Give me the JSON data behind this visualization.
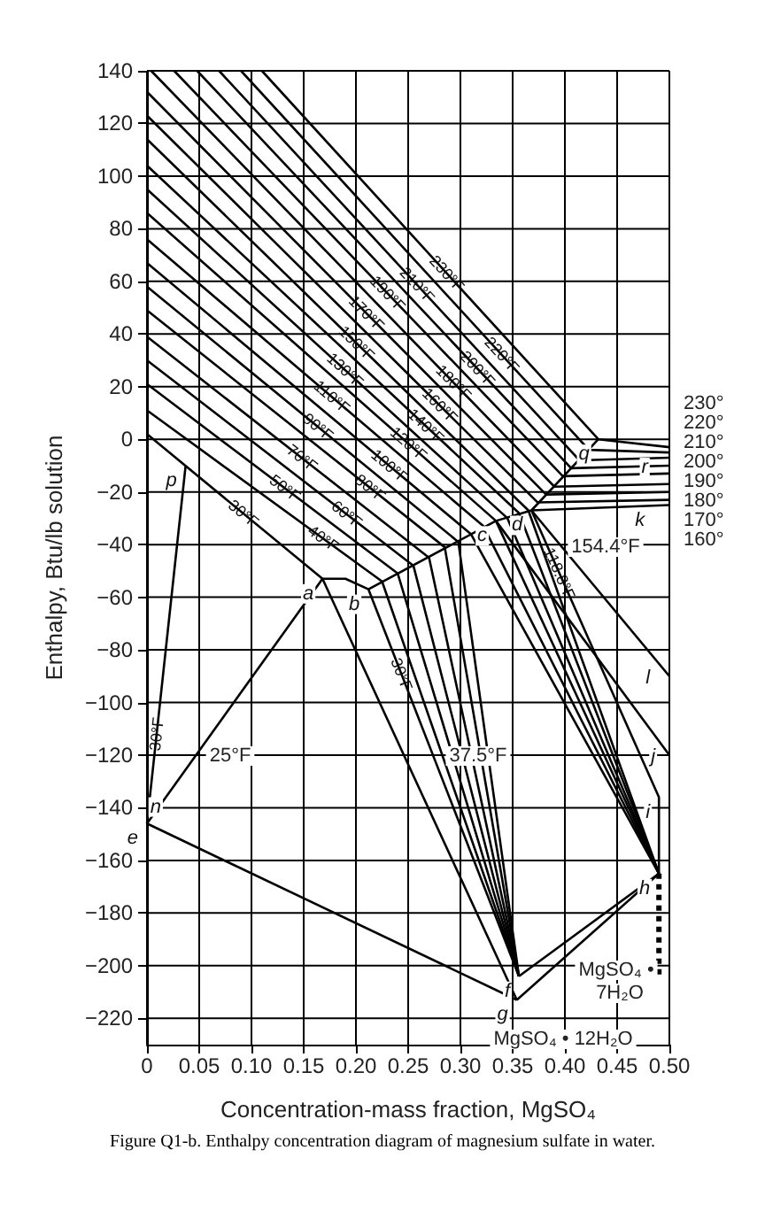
{
  "chart_data": {
    "type": "line",
    "title": "Figure Q1-b. Enthalpy concentration diagram of magnesium sulfate in water.",
    "xlabel": "Concentration-mass fraction, MgSO₄",
    "ylabel": "Enthalpy, Btu/lb solution",
    "xlim": [
      0,
      0.5
    ],
    "ylim": [
      -230,
      140
    ],
    "xticks": [
      0,
      0.05,
      {
        "value": 0.1,
        "label": "0.10"
      },
      0.15,
      {
        "value": 0.2,
        "label": "0.20"
      },
      0.25,
      {
        "value": 0.3,
        "label": "0.30"
      },
      0.35,
      {
        "value": 0.4,
        "label": "0.40"
      },
      0.45,
      {
        "value": 0.5,
        "label": "0.50"
      }
    ],
    "yticks": [
      {
        "value": -220,
        "label": "−220"
      },
      {
        "value": -200,
        "label": "−200"
      },
      {
        "value": -180,
        "label": "−180"
      },
      {
        "value": -160,
        "label": "−160"
      },
      {
        "value": -140,
        "label": "−140"
      },
      {
        "value": -120,
        "label": "−120"
      },
      {
        "value": -100,
        "label": "−100"
      },
      {
        "value": -80,
        "label": "−80"
      },
      {
        "value": -60,
        "label": "−60"
      },
      {
        "value": -40,
        "label": "−40"
      },
      {
        "value": -20,
        "label": "−20"
      },
      0,
      20,
      40,
      60,
      80,
      100,
      120,
      140
    ],
    "grid": true,
    "marker": "none",
    "color": "#000000",
    "series": [
      {
        "name": "30°F",
        "x": [
          0,
          0.168,
          0.354
        ],
        "values": [
          2,
          -53,
          -213
        ]
      },
      {
        "name": "40°F",
        "x": [
          0,
          0.225,
          0.356
        ],
        "values": [
          11,
          -54,
          -204
        ]
      },
      {
        "name": "50°F",
        "x": [
          0,
          0.24,
          0.356
        ],
        "values": [
          21,
          -51,
          -204
        ]
      },
      {
        "name": "60°F",
        "x": [
          0,
          0.255,
          0.356
        ],
        "values": [
          30,
          -48,
          -204
        ]
      },
      {
        "name": "70°F",
        "x": [
          0,
          0.27,
          0.356
        ],
        "values": [
          39,
          -45,
          -204
        ]
      },
      {
        "name": "80°F",
        "x": [
          0,
          0.285,
          0.356
        ],
        "values": [
          49,
          -41,
          -204
        ]
      },
      {
        "name": "90°F",
        "x": [
          0,
          0.298,
          0.356
        ],
        "values": [
          58,
          -39,
          -204
        ]
      },
      {
        "name": "100°F",
        "x": [
          0,
          0.31,
          0.49
        ],
        "values": [
          67,
          -36,
          -165
        ]
      },
      {
        "name": "110°F",
        "x": [
          0,
          0.322,
          0.49
        ],
        "values": [
          76,
          -33,
          -165
        ]
      },
      {
        "name": "120°F",
        "x": [
          0,
          0.334,
          0.49
        ],
        "values": [
          86,
          -31,
          -165
        ]
      },
      {
        "name": "130°F",
        "x": [
          0,
          0.345,
          0.49
        ],
        "values": [
          95,
          -30,
          -165
        ]
      },
      {
        "name": "140°F",
        "x": [
          0,
          0.356,
          0.49
        ],
        "values": [
          104,
          -28,
          -165
        ]
      },
      {
        "name": "150°F",
        "x": [
          0,
          0.365,
          0.49
        ],
        "values": [
          114,
          -27,
          -165
        ]
      },
      {
        "name": "160°F",
        "x": [
          0,
          0.374,
          0.5
        ],
        "values": [
          123,
          -24,
          -23
        ]
      },
      {
        "name": "170°F",
        "x": [
          0,
          0.382,
          0.5
        ],
        "values": [
          132,
          -21,
          -20
        ]
      },
      {
        "name": "180°F",
        "x": [
          0.004,
          0.39,
          0.5
        ],
        "values": [
          140,
          -18,
          -17
        ]
      },
      {
        "name": "190°F",
        "x": [
          0.026,
          0.398,
          0.5
        ],
        "values": [
          140,
          -14,
          -13
        ]
      },
      {
        "name": "200°F",
        "x": [
          0.048,
          0.406,
          0.5
        ],
        "values": [
          140,
          -11,
          -10
        ]
      },
      {
        "name": "210°F",
        "x": [
          0.069,
          0.414,
          0.5
        ],
        "values": [
          140,
          -8,
          -7
        ]
      },
      {
        "name": "220°F",
        "x": [
          0.09,
          0.423,
          0.5
        ],
        "values": [
          140,
          -4,
          -5
        ]
      },
      {
        "name": "230°F",
        "x": [
          0.11,
          0.432,
          0.5
        ],
        "values": [
          140,
          0,
          -3
        ]
      },
      {
        "x": [
          0.168,
          0.19,
          0.212,
          0.334,
          0.368,
          0.432
        ],
        "values": [
          -53,
          -53,
          -57,
          -31,
          -27,
          0
        ]
      },
      {
        "name": "30°F",
        "x": [
          0.037,
          0
        ],
        "values": [
          -10,
          -146
        ]
      },
      {
        "x": [
          0,
          0.168
        ],
        "values": [
          -146,
          -53
        ]
      },
      {
        "x": [
          0,
          0.354
        ],
        "values": [
          -146,
          -213
        ]
      },
      {
        "x": [
          0.354,
          0.49
        ],
        "values": [
          -213,
          -165
        ]
      },
      {
        "x": [
          0.356,
          0.49
        ],
        "values": [
          -204,
          -165
        ]
      },
      {
        "name": "30°F",
        "x": [
          0.212,
          0.356
        ],
        "values": [
          -57,
          -204
        ]
      },
      {
        "x": [
          0.334,
          0.5
        ],
        "values": [
          -31,
          -120
        ]
      },
      {
        "x": [
          0.368,
          0.5
        ],
        "values": [
          -27,
          -25
        ]
      },
      {
        "name": "118.8°F",
        "x": [
          0.368,
          0.49,
          0.49
        ],
        "values": [
          -27,
          -136,
          -165
        ]
      },
      {
        "x": [
          0.368,
          0.5
        ],
        "values": [
          -27,
          -90
        ]
      },
      {
        "x": [
          0.49,
          0.49
        ],
        "values": [
          -165,
          -205
        ],
        "line_style": "dotted"
      }
    ],
    "annotations": [
      {
        "text": "230°",
        "x": 0.5,
        "y": -3
      },
      {
        "text": "220°",
        "x": 0.5,
        "y": -5
      },
      {
        "text": "210°",
        "x": 0.5,
        "y": -7
      },
      {
        "text": "200°",
        "x": 0.5,
        "y": -10
      },
      {
        "text": "190°",
        "x": 0.5,
        "y": -13
      },
      {
        "text": "180°",
        "x": 0.5,
        "y": -17
      },
      {
        "text": "170°",
        "x": 0.5,
        "y": -20
      },
      {
        "text": "160°",
        "x": 0.5,
        "y": -23
      },
      {
        "text": "p",
        "x": 0.037,
        "y": -10
      },
      {
        "text": "a",
        "x": 0.168,
        "y": -53
      },
      {
        "text": "b",
        "x": 0.212,
        "y": -57
      },
      {
        "text": "c",
        "x": 0.334,
        "y": -31
      },
      {
        "text": "d",
        "x": 0.368,
        "y": -27
      },
      {
        "text": "q",
        "x": 0.432,
        "y": 0
      },
      {
        "text": "r",
        "x": 0.488,
        "y": -5
      },
      {
        "text": "k",
        "x": 0.485,
        "y": -25
      },
      {
        "text": "e",
        "x": 0,
        "y": -146
      },
      {
        "text": "n",
        "x": 0.022,
        "y": -134
      },
      {
        "text": "f",
        "x": 0.356,
        "y": -204
      },
      {
        "text": "g",
        "x": 0.354,
        "y": -213
      },
      {
        "text": "h",
        "x": 0.49,
        "y": -165
      },
      {
        "text": "i",
        "x": 0.49,
        "y": -136
      },
      {
        "text": "j",
        "x": 0.495,
        "y": -115
      },
      {
        "text": "l",
        "x": 0.49,
        "y": -85
      },
      "25°F",
      "37.5°F",
      "154.4°F",
      "MgSO₄ • 12H₂O",
      "MgSO₄ •",
      "7H₂O"
    ]
  }
}
